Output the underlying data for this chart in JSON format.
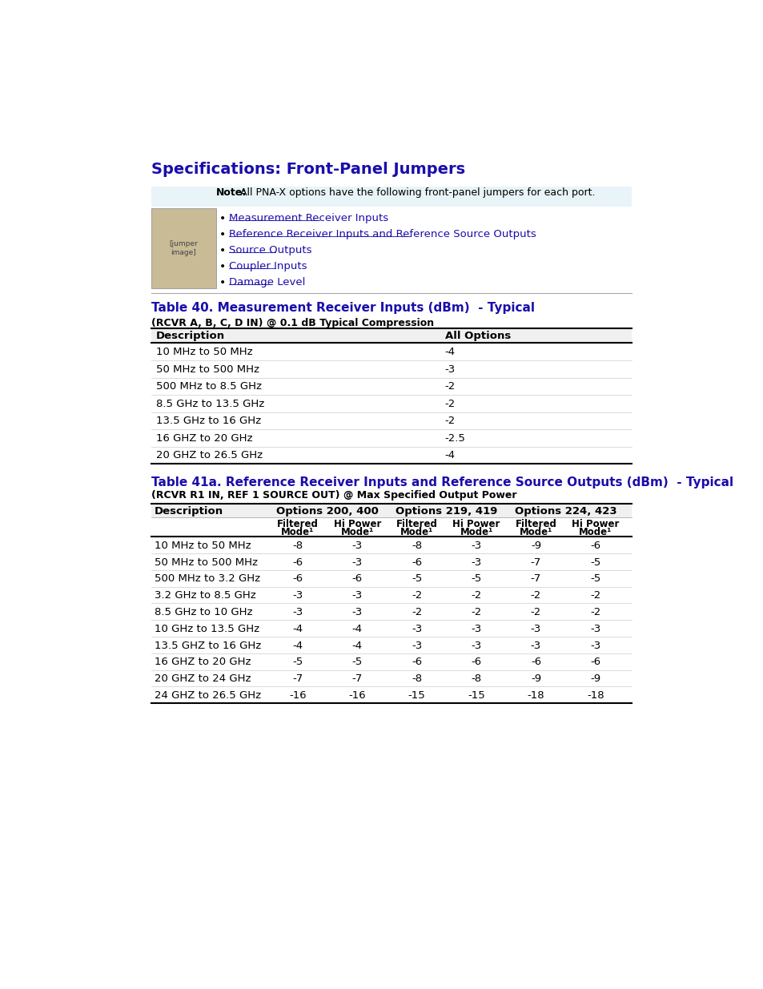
{
  "title": "Specifications: Front-Panel Jumpers",
  "title_color": "#1a0dab",
  "note_bg": "#e8f4f8",
  "note_text": "All PNA-X options have the following front-panel jumpers for each port.",
  "bullet_links": [
    "Measurement Receiver Inputs",
    "Reference Receiver Inputs and Reference Source Outputs",
    "Source Outputs",
    "Coupler Inputs",
    "Damage Level"
  ],
  "link_color": "#1a0dab",
  "table40_title": "Table 40. Measurement Receiver Inputs (dBm)  - Typical",
  "table40_subtitle": "(RCVR A, B, C, D IN) @ 0.1 dB Typical Compression",
  "table40_headers": [
    "Description",
    "All Options"
  ],
  "table40_rows": [
    [
      "10 MHz to 50 MHz",
      "-4"
    ],
    [
      "50 MHz to 500 MHz",
      "-3"
    ],
    [
      "500 MHz to 8.5 GHz",
      "-2"
    ],
    [
      "8.5 GHz to 13.5 GHz",
      "-2"
    ],
    [
      "13.5 GHz to 16 GHz",
      "-2"
    ],
    [
      "16 GHZ to 20 GHz",
      "-2.5"
    ],
    [
      "20 GHZ to 26.5 GHz",
      "-4"
    ]
  ],
  "table41_title": "Table 41a. Reference Receiver Inputs and Reference Source Outputs (dBm)  - Typical",
  "table41_subtitle": "(RCVR R1 IN, REF 1 SOURCE OUT) @ Max Specified Output Power",
  "table41_col1": "Description",
  "table41_group_headers": [
    "Options 200, 400",
    "Options 219, 419",
    "Options 224, 423"
  ],
  "table41_sub_headers": [
    "Filtered\nMode¹",
    "Hi Power\nMode¹"
  ],
  "table41_rows": [
    [
      "10 MHz to 50 MHz",
      "-8",
      "-3",
      "-8",
      "-3",
      "-9",
      "-6"
    ],
    [
      "50 MHz to 500 MHz",
      "-6",
      "-3",
      "-6",
      "-3",
      "-7",
      "-5"
    ],
    [
      "500 MHz to 3.2 GHz",
      "-6",
      "-6",
      "-5",
      "-5",
      "-7",
      "-5"
    ],
    [
      "3.2 GHz to 8.5 GHz",
      "-3",
      "-3",
      "-2",
      "-2",
      "-2",
      "-2"
    ],
    [
      "8.5 GHz to 10 GHz",
      "-3",
      "-3",
      "-2",
      "-2",
      "-2",
      "-2"
    ],
    [
      "10 GHz to 13.5 GHz",
      "-4",
      "-4",
      "-3",
      "-3",
      "-3",
      "-3"
    ],
    [
      "13.5 GHZ to 16 GHz",
      "-4",
      "-4",
      "-3",
      "-3",
      "-3",
      "-3"
    ],
    [
      "16 GHZ to 20 GHz",
      "-5",
      "-5",
      "-6",
      "-6",
      "-6",
      "-6"
    ],
    [
      "20 GHZ to 24 GHz",
      "-7",
      "-7",
      "-8",
      "-8",
      "-9",
      "-9"
    ],
    [
      "24 GHZ to 26.5 GHz",
      "-16",
      "-16",
      "-15",
      "-15",
      "-18",
      "-18"
    ]
  ],
  "table_color": "#1a0dab",
  "bg_color": "#ffffff",
  "text_color": "#000000",
  "header_bg": "#f0f0f0",
  "divider_color": "#999999"
}
